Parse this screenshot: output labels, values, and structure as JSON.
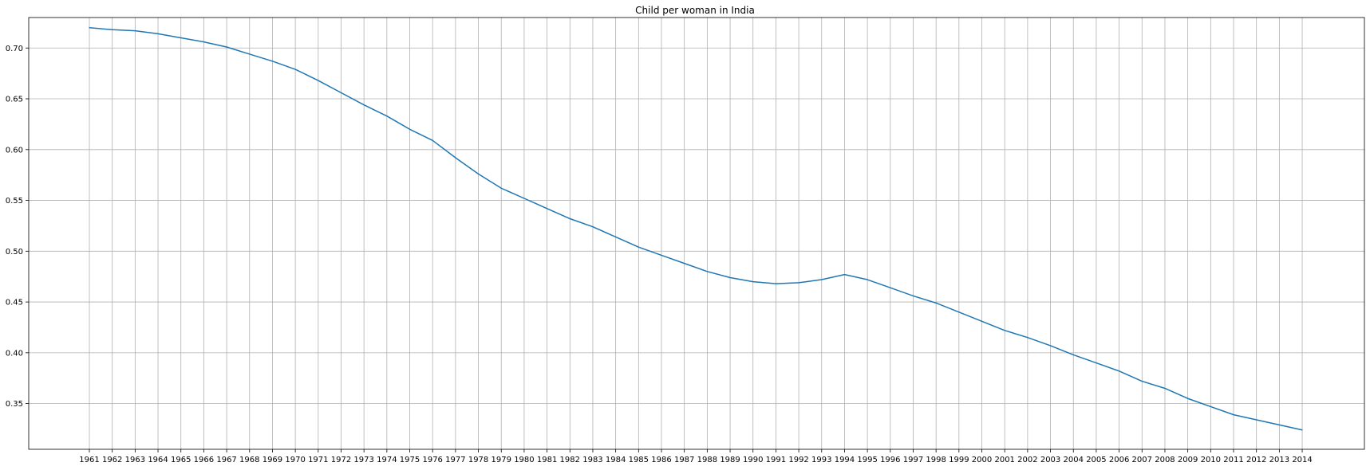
{
  "chart_data": {
    "type": "line",
    "title": "Child per woman in India",
    "xlabel": "",
    "ylabel": "",
    "grid": true,
    "ylim": [
      0.305,
      0.73
    ],
    "yticks": [
      "0.35",
      "0.40",
      "0.45",
      "0.50",
      "0.55",
      "0.60",
      "0.65",
      "0.70"
    ],
    "x": [
      "1961",
      "1962",
      "1963",
      "1964",
      "1965",
      "1966",
      "1967",
      "1968",
      "1969",
      "1970",
      "1971",
      "1972",
      "1973",
      "1974",
      "1975",
      "1976",
      "1977",
      "1978",
      "1979",
      "1980",
      "1981",
      "1982",
      "1983",
      "1984",
      "1985",
      "1986",
      "1987",
      "1988",
      "1989",
      "1990",
      "1991",
      "1992",
      "1993",
      "1994",
      "1995",
      "1996",
      "1997",
      "1998",
      "1999",
      "2000",
      "2001",
      "2002",
      "2003",
      "2004",
      "2005",
      "2006",
      "2007",
      "2008",
      "2009",
      "2010",
      "2011",
      "2012",
      "2013",
      "2014"
    ],
    "series": [
      {
        "color": "#1f77b4",
        "values": [
          0.72,
          0.718,
          0.717,
          0.714,
          0.71,
          0.706,
          0.701,
          0.694,
          0.687,
          0.679,
          0.668,
          0.656,
          0.644,
          0.633,
          0.62,
          0.609,
          0.592,
          0.576,
          0.562,
          0.552,
          0.542,
          0.532,
          0.524,
          0.514,
          0.504,
          0.496,
          0.488,
          0.48,
          0.474,
          0.47,
          0.468,
          0.469,
          0.472,
          0.477,
          0.472,
          0.464,
          0.456,
          0.449,
          0.44,
          0.431,
          0.422,
          0.415,
          0.407,
          0.398,
          0.39,
          0.382,
          0.372,
          0.365,
          0.355,
          0.347,
          0.339,
          0.334,
          0.329,
          0.324
        ]
      }
    ]
  }
}
